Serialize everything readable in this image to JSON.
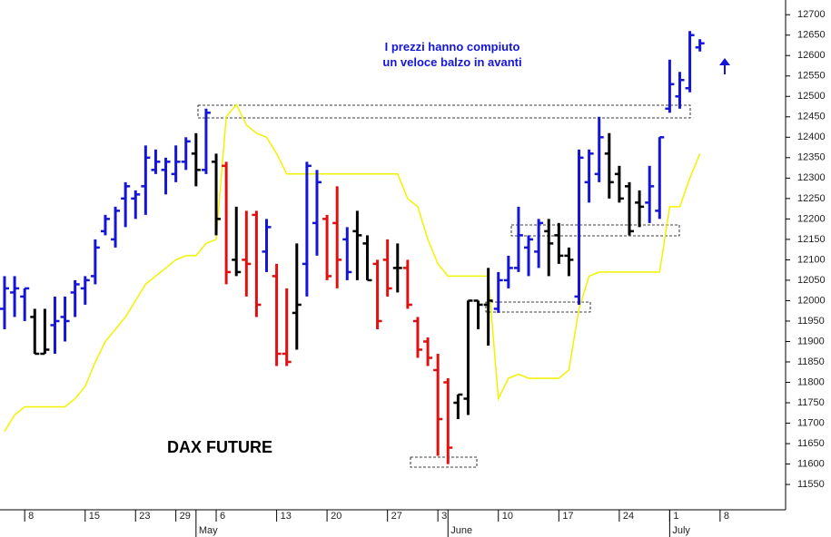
{
  "chart_data": {
    "type": "ohlc",
    "title": "DAX FUTURE",
    "annotation": "I prezzi hanno compiuto\nun veloce balzo in avanti",
    "ylim": [
      11488,
      12736
    ],
    "yticks": [
      11550,
      11600,
      11650,
      11700,
      11750,
      11800,
      11850,
      11900,
      11950,
      12000,
      12050,
      12100,
      12150,
      12200,
      12250,
      12300,
      12350,
      12400,
      12450,
      12500,
      12550,
      12600,
      12650,
      12700
    ],
    "xlim": [
      -0.45,
      77.5
    ],
    "xticks": [
      {
        "value": 2,
        "label": "8"
      },
      {
        "value": 8,
        "label": "15"
      },
      {
        "value": 13,
        "label": "23"
      },
      {
        "value": 17,
        "label": "29"
      },
      {
        "value": 21,
        "label": "6"
      },
      {
        "value": 27,
        "label": "13"
      },
      {
        "value": 32,
        "label": "20"
      },
      {
        "value": 38,
        "label": "27"
      },
      {
        "value": 43,
        "label": "3"
      },
      {
        "value": 49,
        "label": "10"
      },
      {
        "value": 55,
        "label": "17"
      },
      {
        "value": 61,
        "label": "24"
      },
      {
        "value": 66,
        "label": "1"
      },
      {
        "value": 71,
        "label": "8"
      }
    ],
    "month_ticks": [
      {
        "value": 19,
        "label": "May"
      },
      {
        "value": 44,
        "label": "June"
      },
      {
        "value": 66,
        "label": "July"
      }
    ],
    "ohlc": {
      "high": [
        12060,
        12060,
        12030,
        11980,
        11980,
        12010,
        12010,
        12050,
        12060,
        12150,
        12210,
        12230,
        12290,
        12270,
        12380,
        12370,
        12350,
        12380,
        12400,
        12410,
        12470,
        12360,
        12340,
        12230,
        12220,
        12220,
        12200,
        12090,
        12030,
        12140,
        12340,
        12320,
        12210,
        12280,
        12180,
        12220,
        12160,
        12100,
        12150,
        12140,
        12100,
        11960,
        11910,
        11870,
        11810,
        11770,
        12000,
        12000,
        12080,
        12070,
        12110,
        12230,
        12160,
        12200,
        12200,
        12190,
        12130,
        12370,
        12370,
        12450,
        12410,
        12330,
        12290,
        12270,
        12330,
        12400,
        12590,
        12560,
        12660,
        12640
      ],
      "low": [
        11930,
        11960,
        11950,
        11870,
        11870,
        11870,
        11900,
        11960,
        11990,
        12040,
        12160,
        12130,
        12180,
        12200,
        12210,
        12310,
        12260,
        12290,
        12320,
        12280,
        12310,
        12160,
        12040,
        12060,
        12010,
        11960,
        12070,
        11840,
        11840,
        11880,
        12010,
        12110,
        12050,
        12030,
        12050,
        12050,
        12050,
        11930,
        12010,
        12020,
        11980,
        11860,
        11840,
        11620,
        11600,
        11710,
        11720,
        11930,
        11890,
        11970,
        12030,
        12070,
        12060,
        12080,
        12060,
        12090,
        12060,
        11990,
        12240,
        12290,
        12250,
        12240,
        12160,
        12180,
        12190,
        12200,
        12460,
        12470,
        12510,
        12610
      ],
      "open": [
        11980,
        12020,
        12010,
        11960,
        11870,
        11940,
        11960,
        12020,
        12030,
        12060,
        12170,
        12150,
        12250,
        12250,
        12280,
        12320,
        12320,
        12310,
        12340,
        12360,
        12320,
        12340,
        12330,
        12100,
        12100,
        12210,
        12120,
        12060,
        11870,
        11970,
        12090,
        12190,
        12200,
        12190,
        12150,
        12170,
        12140,
        12090,
        12100,
        12080,
        12080,
        11950,
        11900,
        11830,
        11800,
        11750,
        11760,
        12000,
        11990,
        11980,
        12050,
        12080,
        12130,
        12120,
        12170,
        12160,
        12110,
        12010,
        12290,
        12310,
        12360,
        12310,
        12280,
        12240,
        12240,
        12220,
        12470,
        12500,
        12520,
        12620
      ],
      "close": [
        12030,
        12030,
        12030,
        11870,
        11880,
        11950,
        11950,
        12040,
        12050,
        12130,
        12200,
        12220,
        12280,
        12260,
        12350,
        12340,
        12340,
        12340,
        12390,
        12320,
        12460,
        12200,
        12070,
        12070,
        12090,
        11990,
        12180,
        11870,
        11850,
        11990,
        12330,
        12290,
        12060,
        12100,
        12070,
        12160,
        12050,
        11950,
        12030,
        12080,
        11990,
        11880,
        11860,
        11710,
        11640,
        11770,
        12000,
        11990,
        12000,
        12050,
        12080,
        12160,
        12150,
        12190,
        12140,
        12110,
        12100,
        12350,
        12360,
        12400,
        12290,
        12250,
        12170,
        12230,
        12280,
        12400,
        12530,
        12540,
        12650,
        12630
      ],
      "colors": [
        "#1515d8",
        "#1515d8",
        "#1515d8",
        "#000000",
        "#000000",
        "#1515d8",
        "#1515d8",
        "#1515d8",
        "#1515d8",
        "#1515d8",
        "#1515d8",
        "#1515d8",
        "#1515d8",
        "#1515d8",
        "#1515d8",
        "#1515d8",
        "#1515d8",
        "#1515d8",
        "#1515d8",
        "#000000",
        "#1515d8",
        "#000000",
        "#e01010",
        "#000000",
        "#e01010",
        "#e01010",
        "#1515d8",
        "#e01010",
        "#e01010",
        "#000000",
        "#1515d8",
        "#1515d8",
        "#e01010",
        "#e01010",
        "#1515d8",
        "#000000",
        "#000000",
        "#e01010",
        "#e01010",
        "#000000",
        "#e01010",
        "#e01010",
        "#e01010",
        "#e01010",
        "#e01010",
        "#000000",
        "#000000",
        "#000000",
        "#000000",
        "#1515d8",
        "#1515d8",
        "#1515d8",
        "#1515d8",
        "#1515d8",
        "#000000",
        "#000000",
        "#000000",
        "#1515d8",
        "#1515d8",
        "#1515d8",
        "#000000",
        "#000000",
        "#000000",
        "#000000",
        "#1515d8",
        "#1515d8",
        "#1515d8",
        "#1515d8",
        "#1515d8",
        "#1515d8"
      ]
    },
    "line": {
      "color": "#f2f200",
      "values": [
        11680,
        11720,
        11740,
        11740,
        11740,
        11740,
        11740,
        11760,
        11790,
        11850,
        11900,
        11930,
        11960,
        12000,
        12040,
        12060,
        12080,
        12100,
        12110,
        12110,
        12140,
        12150,
        12450,
        12480,
        12430,
        12410,
        12400,
        12360,
        12310,
        12310,
        12310,
        12310,
        12310,
        12310,
        12310,
        12310,
        12310,
        12310,
        12310,
        12310,
        12250,
        12230,
        12150,
        12090,
        12060,
        12060,
        12060,
        12060,
        12060,
        11760,
        11810,
        11820,
        11810,
        11810,
        11810,
        11810,
        11830,
        11980,
        12060,
        12070,
        12070,
        12070,
        12070,
        12070,
        12070,
        12070,
        12230,
        12230,
        12300,
        12360
      ]
    }
  }
}
